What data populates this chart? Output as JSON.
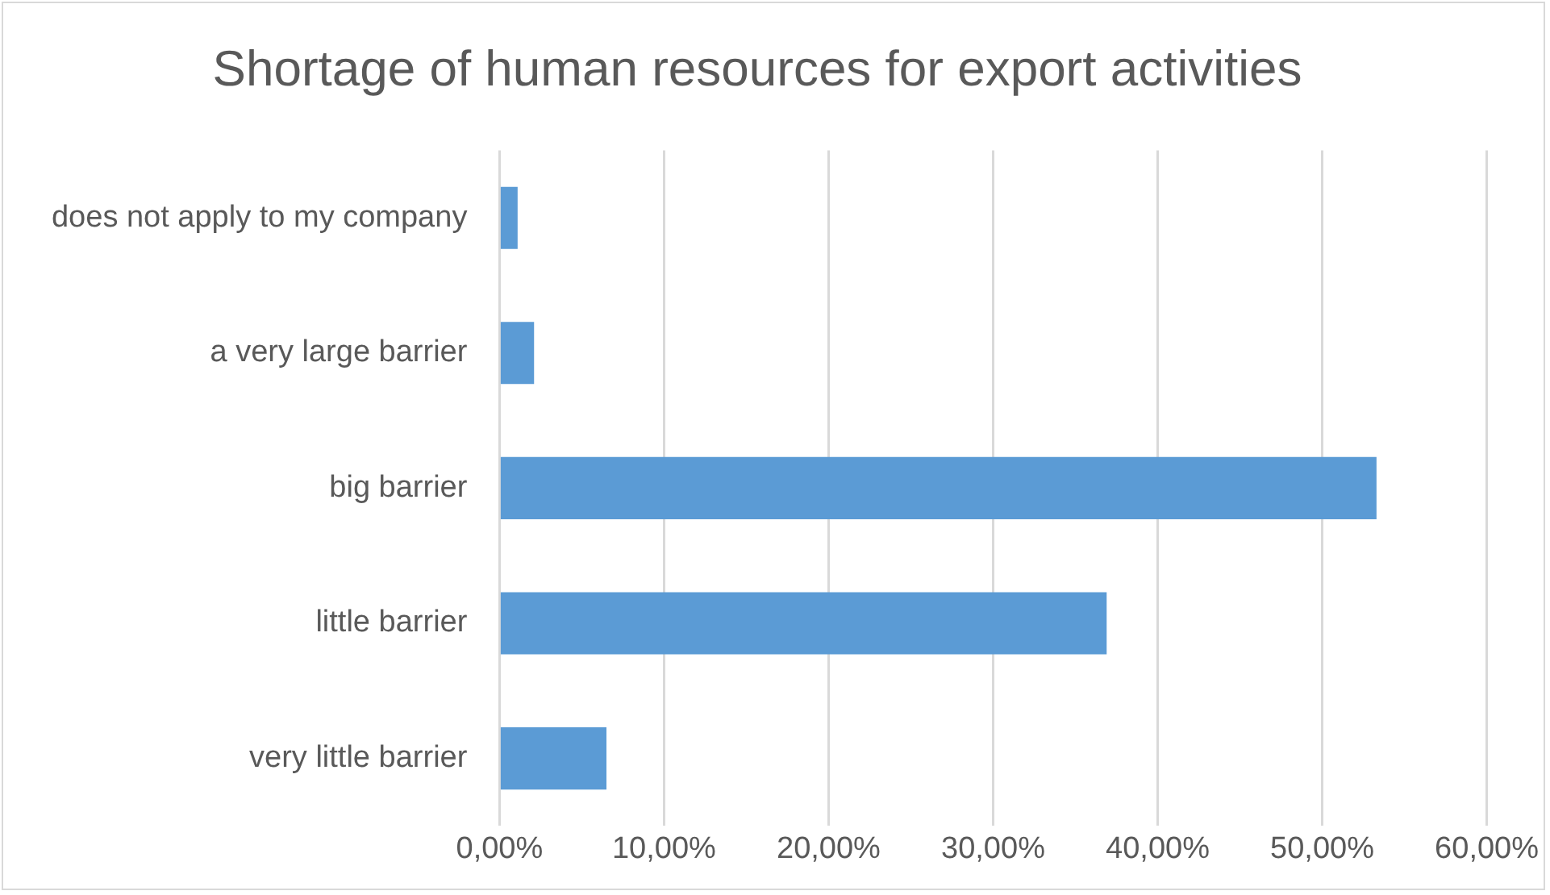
{
  "chart_data": {
    "type": "bar",
    "orientation": "horizontal",
    "title": "Shortage of human resources for export activities",
    "categories": [
      "does not apply to my company",
      "a very large barrier",
      "big barrier",
      "little barrier",
      "very little barrier"
    ],
    "values": [
      1.1,
      2.1,
      53.3,
      36.9,
      6.5
    ],
    "color": "#5b9bd5",
    "xlim": [
      0,
      60
    ],
    "xticks": [
      {
        "value": 0,
        "label": "0,00%"
      },
      {
        "value": 10,
        "label": "10,00%"
      },
      {
        "value": 20,
        "label": "20,00%"
      },
      {
        "value": 30,
        "label": "30,00%"
      },
      {
        "value": 40,
        "label": "40,00%"
      },
      {
        "value": 50,
        "label": "50,00%"
      },
      {
        "value": 60,
        "label": "60,00%"
      }
    ],
    "grid": "x",
    "legend": false
  }
}
